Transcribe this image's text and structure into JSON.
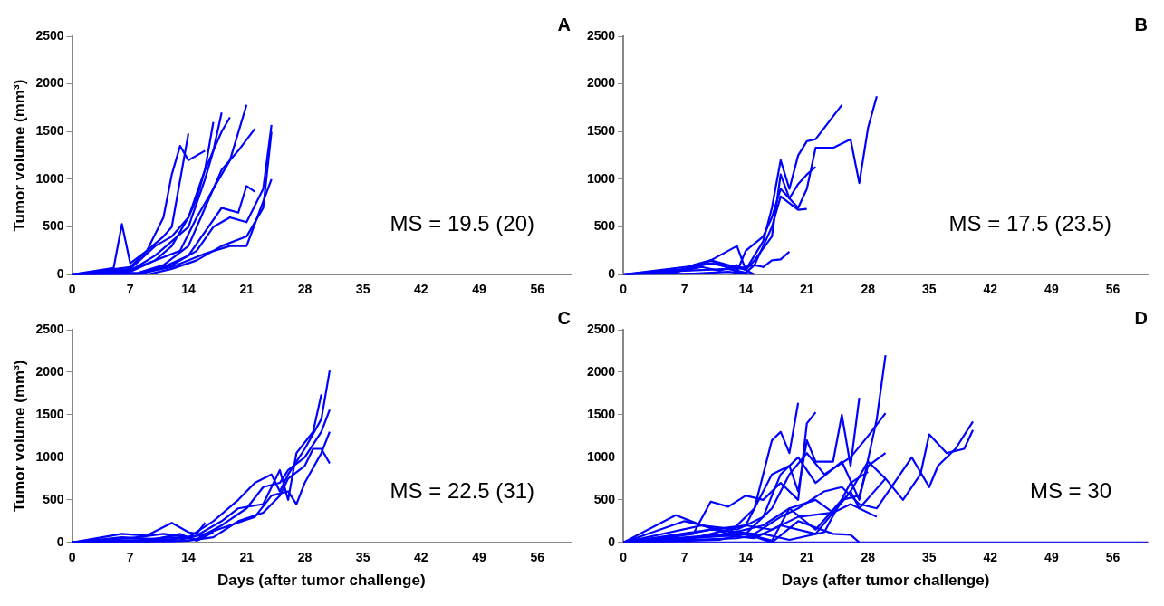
{
  "chart_data": [
    {
      "type": "line",
      "title": "A",
      "ylabel": "Tumor volume (mm³)",
      "annotations": [
        "MS = 19.5 (20)"
      ],
      "xlim": [
        0,
        60
      ],
      "xticks": [
        0,
        7,
        14,
        21,
        28,
        35,
        42,
        49,
        56
      ],
      "ylim": [
        0,
        2500
      ],
      "yticks": [
        0,
        500,
        1000,
        1500,
        2000,
        2500
      ],
      "grid": false,
      "legend": false,
      "series": [
        {
          "color": "#0000ff",
          "x": [
            0,
            5,
            6,
            7,
            9,
            11,
            12,
            14
          ],
          "values": [
            0,
            70,
            530,
            120,
            250,
            400,
            500,
            1480
          ]
        },
        {
          "color": "#0000ff",
          "x": [
            0,
            7,
            9,
            11,
            12,
            13,
            14,
            16
          ],
          "values": [
            0,
            80,
            250,
            600,
            1050,
            1350,
            1200,
            1300
          ]
        },
        {
          "color": "#0000ff",
          "x": [
            0,
            7,
            10,
            12,
            14,
            15,
            16,
            17
          ],
          "values": [
            0,
            60,
            300,
            400,
            600,
            800,
            1100,
            1600
          ]
        },
        {
          "color": "#0000ff",
          "x": [
            0,
            7,
            10,
            12,
            14,
            16,
            17,
            18
          ],
          "values": [
            0,
            40,
            200,
            350,
            500,
            1000,
            1300,
            1700
          ]
        },
        {
          "color": "#0000ff",
          "x": [
            0,
            7,
            10,
            12,
            14,
            16,
            18,
            19
          ],
          "values": [
            0,
            30,
            150,
            300,
            600,
            1100,
            1500,
            1650
          ]
        },
        {
          "color": "#0000ff",
          "x": [
            0,
            7,
            10,
            13,
            15,
            17,
            19,
            21
          ],
          "values": [
            0,
            50,
            150,
            250,
            600,
            900,
            1200,
            1780
          ]
        },
        {
          "color": "#0000ff",
          "x": [
            0,
            8,
            11,
            14,
            16,
            18,
            20,
            22
          ],
          "values": [
            0,
            20,
            100,
            300,
            700,
            1100,
            1300,
            1530
          ]
        },
        {
          "color": "#0000ff",
          "x": [
            0,
            8,
            11,
            14,
            16,
            18,
            20,
            21,
            22
          ],
          "values": [
            0,
            10,
            80,
            200,
            450,
            700,
            650,
            930,
            870
          ]
        },
        {
          "color": "#0000ff",
          "x": [
            0,
            8,
            12,
            15,
            17,
            19,
            21,
            23,
            24
          ],
          "values": [
            0,
            0,
            100,
            250,
            500,
            600,
            550,
            900,
            1570
          ]
        },
        {
          "color": "#0000ff",
          "x": [
            0,
            9,
            12,
            15,
            18,
            21,
            23,
            24
          ],
          "values": [
            0,
            0,
            60,
            150,
            300,
            400,
            700,
            1500
          ]
        },
        {
          "color": "#0000ff",
          "x": [
            0,
            8,
            12,
            16,
            19,
            21,
            24
          ],
          "values": [
            0,
            10,
            80,
            220,
            300,
            300,
            1000
          ]
        }
      ]
    },
    {
      "type": "line",
      "title": "B",
      "annotations": [
        "MS = 17.5 (23.5)"
      ],
      "xlim": [
        0,
        60
      ],
      "xticks": [
        0,
        7,
        14,
        21,
        28,
        35,
        42,
        49,
        56
      ],
      "ylim": [
        0,
        2500
      ],
      "yticks": [
        0,
        500,
        1000,
        1500,
        2000,
        2500
      ],
      "grid": false,
      "legend": false,
      "series": [
        {
          "color": "#0000ff",
          "x": [
            0,
            7,
            9,
            11,
            13,
            14,
            16,
            17,
            18,
            19,
            20,
            21,
            22,
            25
          ],
          "values": [
            0,
            80,
            100,
            200,
            300,
            50,
            350,
            700,
            1200,
            900,
            1250,
            1400,
            1420,
            1780
          ]
        },
        {
          "color": "#0000ff",
          "x": [
            0,
            7,
            10,
            12,
            14,
            15,
            17,
            18,
            19,
            20,
            21,
            22,
            24,
            26,
            27,
            28,
            29
          ],
          "values": [
            0,
            50,
            150,
            100,
            50,
            150,
            400,
            1050,
            800,
            700,
            900,
            1330,
            1330,
            1420,
            960,
            1540,
            1870
          ]
        },
        {
          "color": "#0000ff",
          "x": [
            0,
            6,
            8,
            10,
            13,
            14,
            16,
            17,
            18,
            19,
            20,
            21,
            22
          ],
          "values": [
            0,
            20,
            100,
            150,
            30,
            250,
            400,
            600,
            900,
            800,
            950,
            1050,
            1130
          ]
        },
        {
          "color": "#0000ff",
          "x": [
            0,
            7,
            10,
            13,
            15,
            16,
            17,
            18,
            20,
            21
          ],
          "values": [
            0,
            60,
            120,
            60,
            100,
            300,
            500,
            820,
            680,
            690
          ]
        },
        {
          "color": "#0000ff",
          "x": [
            0,
            7,
            12,
            14,
            15,
            16,
            17,
            18,
            19
          ],
          "values": [
            0,
            40,
            60,
            20,
            100,
            80,
            150,
            160,
            240
          ]
        },
        {
          "color": "#0000ff",
          "x": [
            0,
            8,
            12,
            14,
            15
          ],
          "values": [
            0,
            10,
            30,
            10,
            0
          ]
        },
        {
          "color": "#0000ff",
          "x": [
            0,
            6,
            9,
            11,
            13,
            15
          ],
          "values": [
            0,
            30,
            80,
            40,
            100,
            0
          ]
        }
      ]
    },
    {
      "type": "line",
      "title": "C",
      "xlabel": "Days (after tumor challenge)",
      "ylabel": "Tumor volume (mm³)",
      "annotations": [
        "MS = 22.5 (31)"
      ],
      "xlim": [
        0,
        60
      ],
      "xticks": [
        0,
        7,
        14,
        21,
        28,
        35,
        42,
        49,
        56
      ],
      "ylim": [
        0,
        2500
      ],
      "yticks": [
        0,
        500,
        1000,
        1500,
        2000,
        2500
      ],
      "grid": false,
      "legend": false,
      "series": [
        {
          "color": "#0000ff",
          "x": [
            0,
            6,
            9,
            12,
            14,
            15,
            16
          ],
          "values": [
            0,
            100,
            80,
            230,
            120,
            100,
            230
          ]
        },
        {
          "color": "#0000ff",
          "x": [
            0,
            7,
            11,
            14,
            17,
            20,
            22,
            24,
            25,
            26,
            27,
            28,
            30,
            31
          ],
          "values": [
            0,
            50,
            100,
            60,
            250,
            500,
            700,
            800,
            600,
            800,
            950,
            1100,
            1450,
            2020
          ]
        },
        {
          "color": "#0000ff",
          "x": [
            0,
            8,
            12,
            15,
            18,
            21,
            23,
            25,
            26,
            28,
            30,
            31
          ],
          "values": [
            0,
            30,
            60,
            40,
            200,
            400,
            650,
            700,
            850,
            1000,
            1300,
            1560
          ]
        },
        {
          "color": "#0000ff",
          "x": [
            0,
            7,
            12,
            15,
            18,
            20,
            23,
            25,
            26,
            27,
            29,
            30
          ],
          "values": [
            0,
            20,
            40,
            80,
            250,
            400,
            450,
            850,
            500,
            1050,
            1300,
            1740
          ]
        },
        {
          "color": "#0000ff",
          "x": [
            0,
            9,
            13,
            16,
            19,
            22,
            24,
            26,
            27,
            28,
            30,
            31
          ],
          "values": [
            0,
            10,
            30,
            100,
            200,
            300,
            550,
            600,
            450,
            700,
            1050,
            1300
          ]
        },
        {
          "color": "#0000ff",
          "x": [
            0,
            10,
            14,
            17,
            20,
            23,
            25,
            26,
            28,
            29,
            30,
            31
          ],
          "values": [
            0,
            0,
            20,
            60,
            250,
            350,
            550,
            750,
            900,
            1100,
            1100,
            930
          ]
        },
        {
          "color": "#0000ff",
          "x": [
            0,
            6,
            10,
            13,
            15,
            17
          ],
          "values": [
            0,
            60,
            40,
            100,
            20,
            120
          ]
        }
      ]
    },
    {
      "type": "line",
      "title": "D",
      "xlabel": "Days (after tumor challenge)",
      "annotations": [
        "MS = 30"
      ],
      "xlim": [
        0,
        60
      ],
      "xticks": [
        0,
        7,
        14,
        21,
        28,
        35,
        42,
        49,
        56
      ],
      "ylim": [
        0,
        2500
      ],
      "yticks": [
        0,
        500,
        1000,
        1500,
        2000,
        2500
      ],
      "grid": false,
      "legend": false,
      "series": [
        {
          "color": "#0000ff",
          "x": [
            0,
            6,
            9,
            12,
            15,
            17,
            18,
            19,
            20
          ],
          "values": [
            0,
            320,
            200,
            100,
            400,
            1200,
            1300,
            1050,
            1640
          ]
        },
        {
          "color": "#0000ff",
          "x": [
            0,
            8,
            10,
            12,
            14,
            16,
            18,
            20,
            21,
            22
          ],
          "values": [
            0,
            100,
            480,
            420,
            550,
            500,
            700,
            500,
            1400,
            1530
          ]
        },
        {
          "color": "#0000ff",
          "x": [
            0,
            5,
            10,
            14,
            17,
            19,
            20,
            21,
            22,
            24,
            25,
            26,
            27
          ],
          "values": [
            0,
            50,
            150,
            200,
            800,
            900,
            600,
            1200,
            950,
            950,
            1500,
            900,
            1700
          ]
        },
        {
          "color": "#0000ff",
          "x": [
            0,
            7,
            11,
            14,
            17,
            19,
            21,
            23,
            26,
            28,
            30
          ],
          "values": [
            0,
            250,
            150,
            100,
            400,
            800,
            1050,
            800,
            1000,
            1250,
            1520
          ]
        },
        {
          "color": "#0000ff",
          "x": [
            0,
            9,
            13,
            16,
            18,
            20,
            22,
            25,
            27,
            29,
            30
          ],
          "values": [
            0,
            200,
            150,
            300,
            800,
            1000,
            700,
            950,
            500,
            1450,
            2200
          ]
        },
        {
          "color": "#0000ff",
          "x": [
            0,
            10,
            15,
            18,
            20,
            23,
            25,
            27,
            29,
            31,
            33,
            35,
            36,
            38,
            40
          ],
          "values": [
            0,
            150,
            100,
            300,
            400,
            600,
            650,
            450,
            400,
            700,
            1000,
            650,
            900,
            1100,
            1420
          ]
        },
        {
          "color": "#0000ff",
          "x": [
            0,
            8,
            14,
            17,
            20,
            24,
            26,
            28,
            30,
            32,
            34,
            35,
            37,
            39,
            40
          ],
          "values": [
            0,
            50,
            200,
            150,
            300,
            350,
            600,
            950,
            750,
            500,
            800,
            1270,
            1050,
            1100,
            1320
          ]
        },
        {
          "color": "#0000ff",
          "x": [
            0,
            12,
            16,
            19,
            22,
            25,
            27,
            28,
            30
          ],
          "values": [
            0,
            100,
            200,
            400,
            150,
            500,
            550,
            900,
            1050
          ]
        },
        {
          "color": "#0000ff",
          "x": [
            0,
            12,
            15,
            18,
            22,
            26,
            27,
            30
          ],
          "values": [
            0,
            80,
            50,
            200,
            100,
            600,
            400,
            750
          ]
        },
        {
          "color": "#0000ff",
          "x": [
            0,
            13,
            16,
            19,
            23,
            26,
            28
          ],
          "values": [
            0,
            50,
            100,
            30,
            120,
            700,
            830
          ]
        },
        {
          "color": "#0000ff",
          "x": [
            0,
            11,
            14,
            17,
            19,
            22,
            24,
            26,
            29
          ],
          "values": [
            0,
            30,
            100,
            20,
            400,
            500,
            350,
            450,
            300
          ]
        },
        {
          "color": "#0000ff",
          "x": [
            0,
            9,
            14,
            17,
            20,
            24,
            26,
            27
          ],
          "values": [
            0,
            60,
            100,
            0,
            250,
            100,
            90,
            0
          ]
        },
        {
          "color": "#0000ff",
          "x": [
            0,
            60
          ],
          "values": [
            0,
            0
          ]
        }
      ]
    }
  ]
}
